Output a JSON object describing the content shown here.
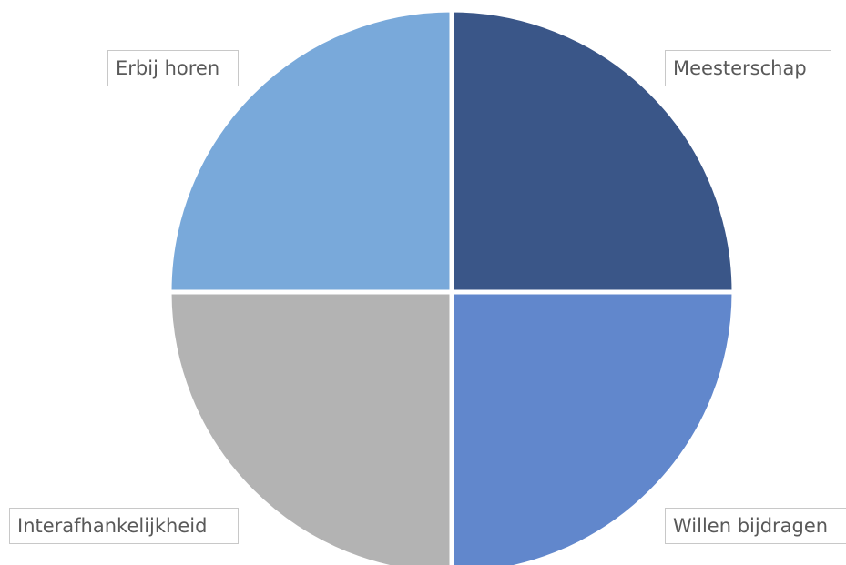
{
  "chart_data": {
    "type": "pie",
    "title": "",
    "slices": [
      {
        "label": "Erbij horen",
        "value": 25,
        "color": "#3a5688"
      },
      {
        "label": "Meesterschap",
        "value": 25,
        "color": "#6187cc"
      },
      {
        "label": "Willen bijdragen",
        "value": 25,
        "color": "#b3b3b3"
      },
      {
        "label": "Interafhankelijkheid",
        "value": 25,
        "color": "#79a9da"
      }
    ],
    "start_angle_deg": -90,
    "separator_color": "#ffffff",
    "legend": "none"
  }
}
